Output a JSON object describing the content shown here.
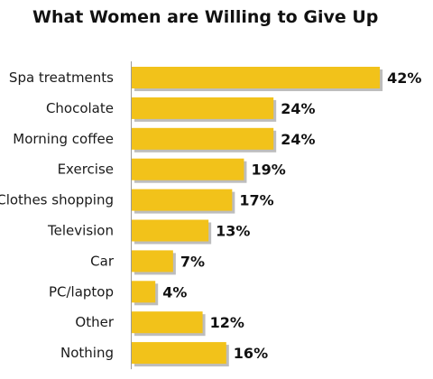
{
  "chart_data": {
    "type": "bar",
    "orientation": "horizontal",
    "title": "What Women are Willing to Give Up",
    "categories": [
      "Spa treatments",
      "Chocolate",
      "Morning coffee",
      "Exercise",
      "Clothes shopping",
      "Television",
      "Car",
      "PC/laptop",
      "Other",
      "Nothing"
    ],
    "values": [
      42,
      24,
      24,
      19,
      17,
      13,
      7,
      4,
      12,
      16
    ],
    "value_labels": [
      "42%",
      "24%",
      "24%",
      "19%",
      "17%",
      "13%",
      "7%",
      "4%",
      "12%",
      "16%"
    ],
    "unit": "%",
    "xlabel": "",
    "ylabel": "",
    "grid": false,
    "legend": "none",
    "colors": {
      "bar": "#f2c21a",
      "bar_shadow": "#bdbdbd",
      "axis": "#9a9a9a",
      "text": "#111111"
    }
  }
}
